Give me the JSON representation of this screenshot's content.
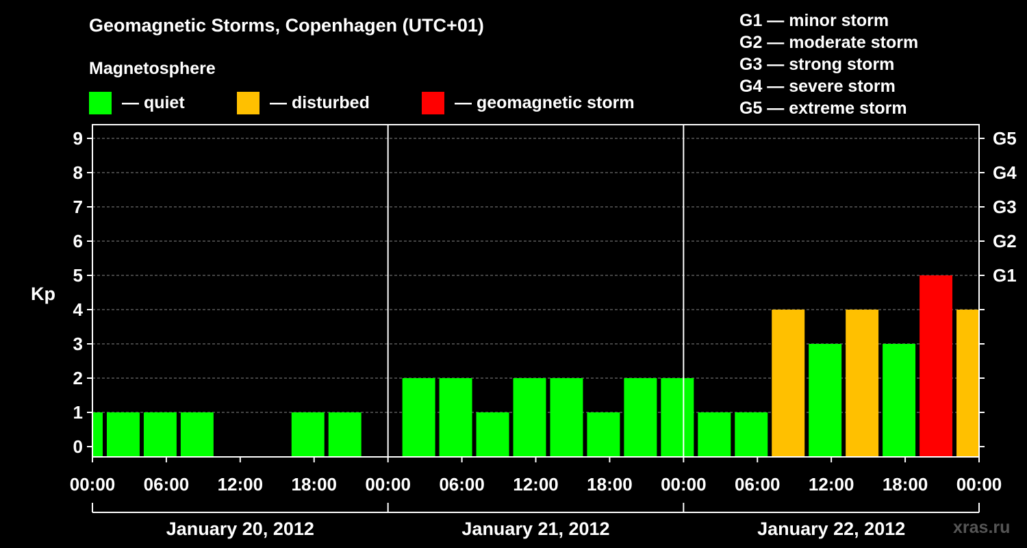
{
  "header": {
    "title": "Geomagnetic Storms, Copenhagen (UTC+01)",
    "subtitle": "Magnetosphere"
  },
  "legend": [
    {
      "label": "— quiet",
      "color": "#00ff00"
    },
    {
      "label": "— disturbed",
      "color": "#ffc000"
    },
    {
      "label": "— geomagnetic storm",
      "color": "#ff0000"
    }
  ],
  "g_legend": [
    "G1 — minor storm",
    "G2 — moderate storm",
    "G3 — strong storm",
    "G4 — severe storm",
    "G5 — extreme storm"
  ],
  "watermark": "xras.ru",
  "chart_data": {
    "type": "bar",
    "ylabel": "Kp",
    "ylim": [
      0,
      9
    ],
    "y_ticks": [
      "0",
      "1",
      "2",
      "3",
      "4",
      "5",
      "6",
      "7",
      "8",
      "9"
    ],
    "right_ticks": [
      {
        "value": 5,
        "label": "G1"
      },
      {
        "value": 6,
        "label": "G2"
      },
      {
        "value": 7,
        "label": "G3"
      },
      {
        "value": 8,
        "label": "G4"
      },
      {
        "value": 9,
        "label": "G5"
      }
    ],
    "x_tick_labels": [
      "00:00",
      "06:00",
      "12:00",
      "18:00",
      "00:00",
      "06:00",
      "12:00",
      "18:00",
      "00:00",
      "06:00",
      "12:00",
      "18:00",
      "00:00"
    ],
    "days": [
      "January 20, 2012",
      "January 21, 2012",
      "January 22, 2012"
    ],
    "grid": true,
    "colors": {
      "quiet": "#00ff00",
      "disturbed": "#ffc000",
      "storm": "#ff0000"
    },
    "bars": [
      {
        "start": "2012-01-19 22:00",
        "end": "2012-01-20 01:00",
        "kp": 1,
        "level": "quiet"
      },
      {
        "start": "2012-01-20 01:00",
        "end": "2012-01-20 04:00",
        "kp": 1,
        "level": "quiet"
      },
      {
        "start": "2012-01-20 04:00",
        "end": "2012-01-20 07:00",
        "kp": 1,
        "level": "quiet"
      },
      {
        "start": "2012-01-20 07:00",
        "end": "2012-01-20 10:00",
        "kp": 1,
        "level": "quiet"
      },
      {
        "start": "2012-01-20 10:00",
        "end": "2012-01-20 13:00",
        "kp": 0,
        "level": "quiet"
      },
      {
        "start": "2012-01-20 13:00",
        "end": "2012-01-20 16:00",
        "kp": 0,
        "level": "quiet"
      },
      {
        "start": "2012-01-20 16:00",
        "end": "2012-01-20 19:00",
        "kp": 1,
        "level": "quiet"
      },
      {
        "start": "2012-01-20 19:00",
        "end": "2012-01-20 22:00",
        "kp": 1,
        "level": "quiet"
      },
      {
        "start": "2012-01-20 22:00",
        "end": "2012-01-21 01:00",
        "kp": 0,
        "level": "quiet"
      },
      {
        "start": "2012-01-21 01:00",
        "end": "2012-01-21 04:00",
        "kp": 2,
        "level": "quiet"
      },
      {
        "start": "2012-01-21 04:00",
        "end": "2012-01-21 07:00",
        "kp": 2,
        "level": "quiet"
      },
      {
        "start": "2012-01-21 07:00",
        "end": "2012-01-21 10:00",
        "kp": 1,
        "level": "quiet"
      },
      {
        "start": "2012-01-21 10:00",
        "end": "2012-01-21 13:00",
        "kp": 2,
        "level": "quiet"
      },
      {
        "start": "2012-01-21 13:00",
        "end": "2012-01-21 16:00",
        "kp": 2,
        "level": "quiet"
      },
      {
        "start": "2012-01-21 16:00",
        "end": "2012-01-21 19:00",
        "kp": 1,
        "level": "quiet"
      },
      {
        "start": "2012-01-21 19:00",
        "end": "2012-01-21 22:00",
        "kp": 2,
        "level": "quiet"
      },
      {
        "start": "2012-01-21 22:00",
        "end": "2012-01-22 01:00",
        "kp": 2,
        "level": "quiet"
      },
      {
        "start": "2012-01-22 01:00",
        "end": "2012-01-22 04:00",
        "kp": 1,
        "level": "quiet"
      },
      {
        "start": "2012-01-22 04:00",
        "end": "2012-01-22 07:00",
        "kp": 1,
        "level": "quiet"
      },
      {
        "start": "2012-01-22 07:00",
        "end": "2012-01-22 10:00",
        "kp": 4,
        "level": "disturbed"
      },
      {
        "start": "2012-01-22 10:00",
        "end": "2012-01-22 13:00",
        "kp": 3,
        "level": "quiet"
      },
      {
        "start": "2012-01-22 13:00",
        "end": "2012-01-22 16:00",
        "kp": 4,
        "level": "disturbed"
      },
      {
        "start": "2012-01-22 16:00",
        "end": "2012-01-22 19:00",
        "kp": 3,
        "level": "quiet"
      },
      {
        "start": "2012-01-22 19:00",
        "end": "2012-01-22 22:00",
        "kp": 5,
        "level": "storm"
      },
      {
        "start": "2012-01-22 22:00",
        "end": "2012-01-23 01:00",
        "kp": 4,
        "level": "disturbed"
      }
    ]
  }
}
